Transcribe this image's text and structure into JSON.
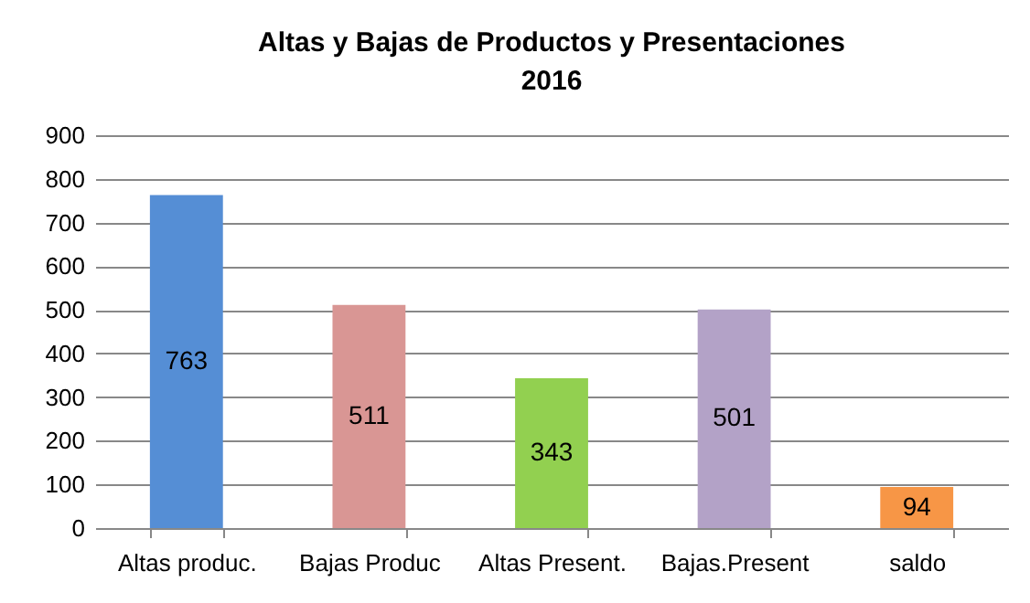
{
  "chart_data": {
    "type": "bar",
    "title": "Altas y Bajas de Productos y Presentaciones",
    "subtitle": "2016",
    "categories": [
      "Altas produc.",
      "Bajas Produc",
      "Altas Present.",
      "Bajas.Present",
      "saldo"
    ],
    "values": [
      763,
      511,
      343,
      501,
      94
    ],
    "colors": [
      "#558ed5",
      "#d99694",
      "#92d050",
      "#b3a2c7",
      "#f79646"
    ],
    "ylim": [
      0,
      900
    ],
    "yticks": [
      0,
      100,
      200,
      300,
      400,
      500,
      600,
      700,
      800,
      900
    ],
    "grid": "y",
    "data_labels": true
  }
}
